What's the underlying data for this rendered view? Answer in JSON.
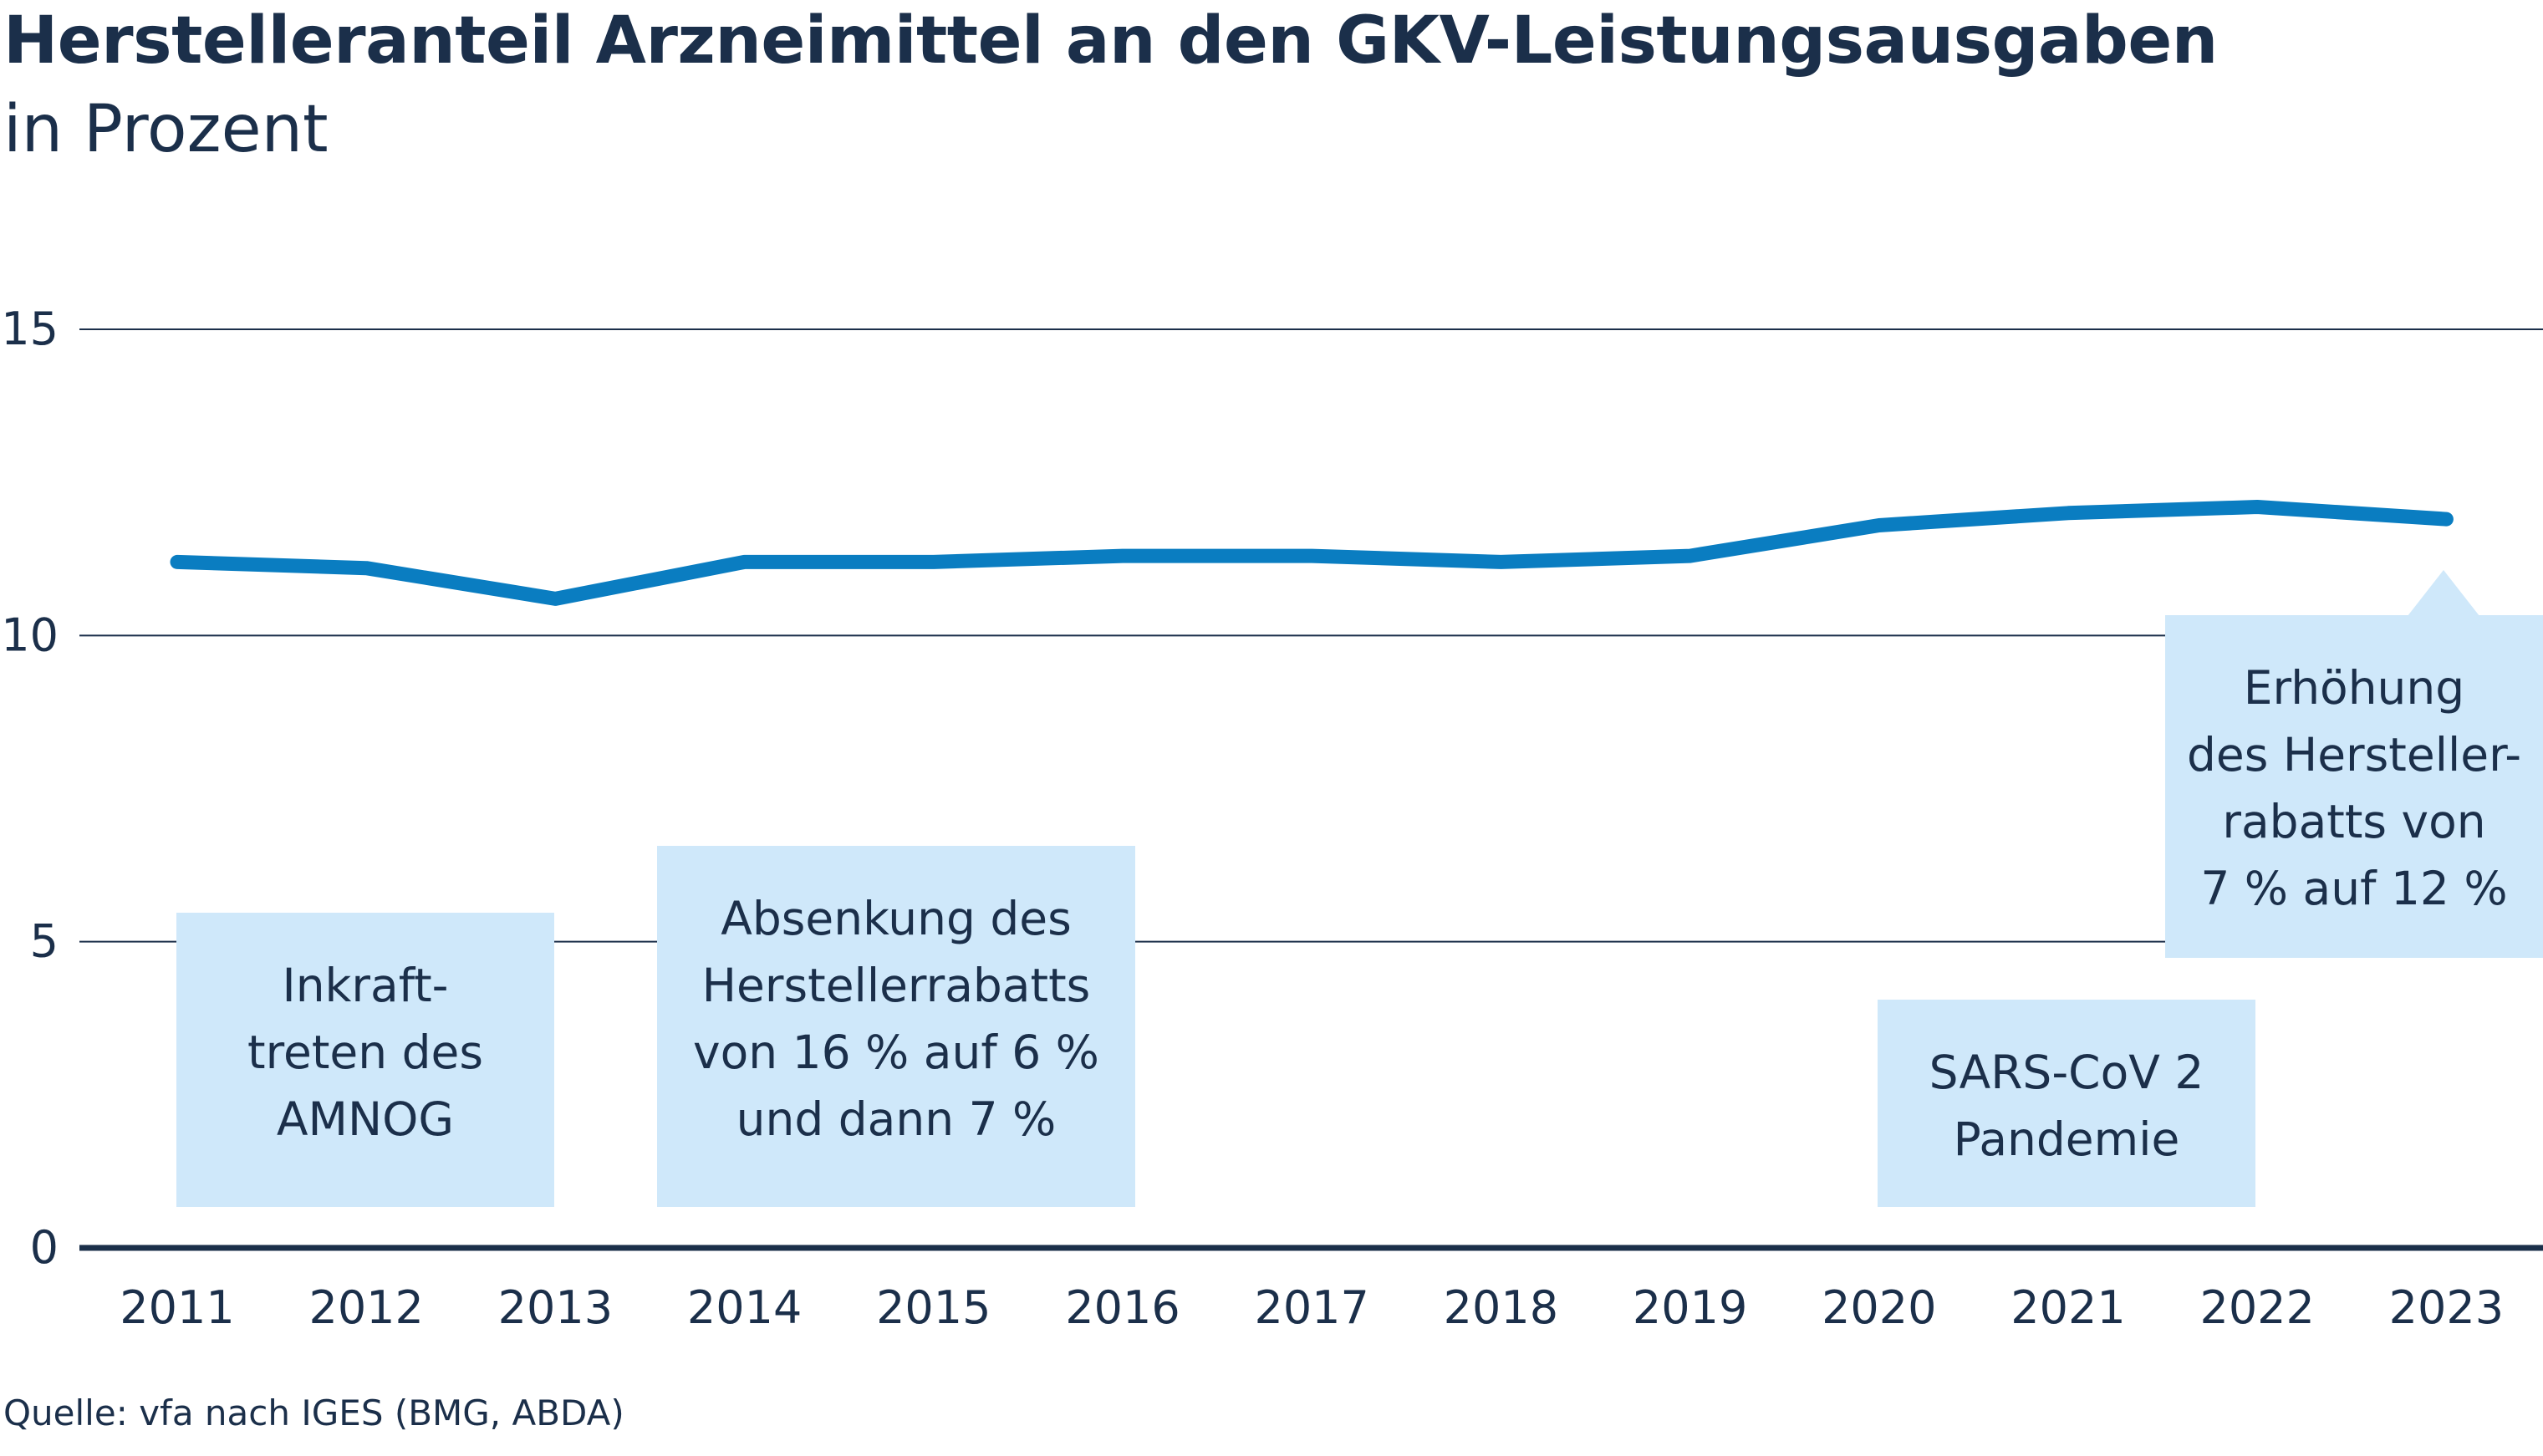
{
  "title": "Herstelleranteil Arzneimittel an den GKV-Leistungsausgaben",
  "subtitle": "in Prozent",
  "source": "Quelle: vfa nach IGES (BMG, ABDA)",
  "colors": {
    "line": "#0a7dc1",
    "annotation_bg": "#cfe8fa",
    "text": "#1b2f4a",
    "grid": "#1b2f4a"
  },
  "chart_data": {
    "type": "line",
    "title": "Herstelleranteil Arzneimittel an den GKV-Leistungsausgaben",
    "subtitle": "in Prozent",
    "xlabel": "",
    "ylabel": "",
    "x": [
      "2011",
      "2012",
      "2013",
      "2014",
      "2015",
      "2016",
      "2017",
      "2018",
      "2019",
      "2020",
      "2021",
      "2022",
      "2023"
    ],
    "series": [
      {
        "values": [
          11.2,
          11.1,
          10.6,
          11.2,
          11.2,
          11.3,
          11.3,
          11.2,
          11.3,
          11.8,
          12.0,
          12.1,
          11.9
        ]
      }
    ],
    "ylim": [
      0,
      15
    ],
    "yticks": [
      "0",
      "5",
      "10",
      "15"
    ],
    "grid": true,
    "legend": "none",
    "annotations": [
      {
        "lines": [
          "Inkraft-",
          "treten des",
          "AMNOG"
        ]
      },
      {
        "lines": [
          "Absenkung des",
          "Herstellerrabatts",
          "von 16 % auf 6 %",
          "und dann 7 %"
        ]
      },
      {
        "lines": [
          "SARS-CoV 2",
          "Pandemie"
        ]
      },
      {
        "lines": [
          "Erhöhung",
          "des Hersteller-",
          "rabatts von",
          "7 % auf 12 %"
        ]
      }
    ]
  }
}
